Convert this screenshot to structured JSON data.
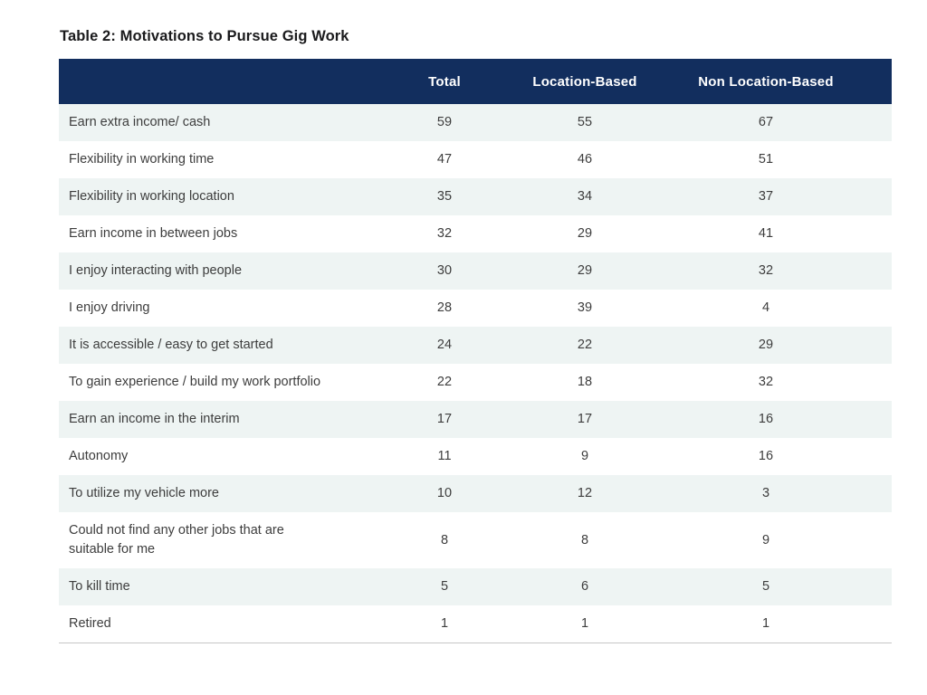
{
  "colors": {
    "header_bg": "#122e5e",
    "header_text": "#ffffff",
    "row_stripe": "#eef4f3",
    "body_text": "#3d3d3d",
    "title_text": "#1a1a1c",
    "bottom_rule": "#c6c6c6"
  },
  "chart_data": {
    "type": "table",
    "title": "Table 2: Motivations to Pursue Gig Work",
    "columns": [
      "Total",
      "Location-Based",
      "Non Location-Based"
    ],
    "rows": [
      {
        "label": "Earn extra income/ cash",
        "values": [
          59,
          55,
          67
        ]
      },
      {
        "label": "Flexibility in working time",
        "values": [
          47,
          46,
          51
        ]
      },
      {
        "label": "Flexibility in working location",
        "values": [
          35,
          34,
          37
        ]
      },
      {
        "label": "Earn income in between jobs",
        "values": [
          32,
          29,
          41
        ]
      },
      {
        "label": "I enjoy interacting with people",
        "values": [
          30,
          29,
          32
        ]
      },
      {
        "label": "I enjoy driving",
        "values": [
          28,
          39,
          4
        ]
      },
      {
        "label": "It is accessible / easy to get started",
        "values": [
          24,
          22,
          29
        ]
      },
      {
        "label": "To gain experience / build my work portfolio",
        "values": [
          22,
          18,
          32
        ]
      },
      {
        "label": "Earn an income in the interim",
        "values": [
          17,
          17,
          16
        ]
      },
      {
        "label": "Autonomy",
        "values": [
          11,
          9,
          16
        ]
      },
      {
        "label": "To utilize my vehicle more",
        "values": [
          10,
          12,
          3
        ]
      },
      {
        "label": "Could not find any other jobs that are\nsuitable for me",
        "values": [
          8,
          8,
          9
        ]
      },
      {
        "label": "To kill time",
        "values": [
          5,
          6,
          5
        ]
      },
      {
        "label": "Retired",
        "values": [
          1,
          1,
          1
        ]
      }
    ]
  }
}
